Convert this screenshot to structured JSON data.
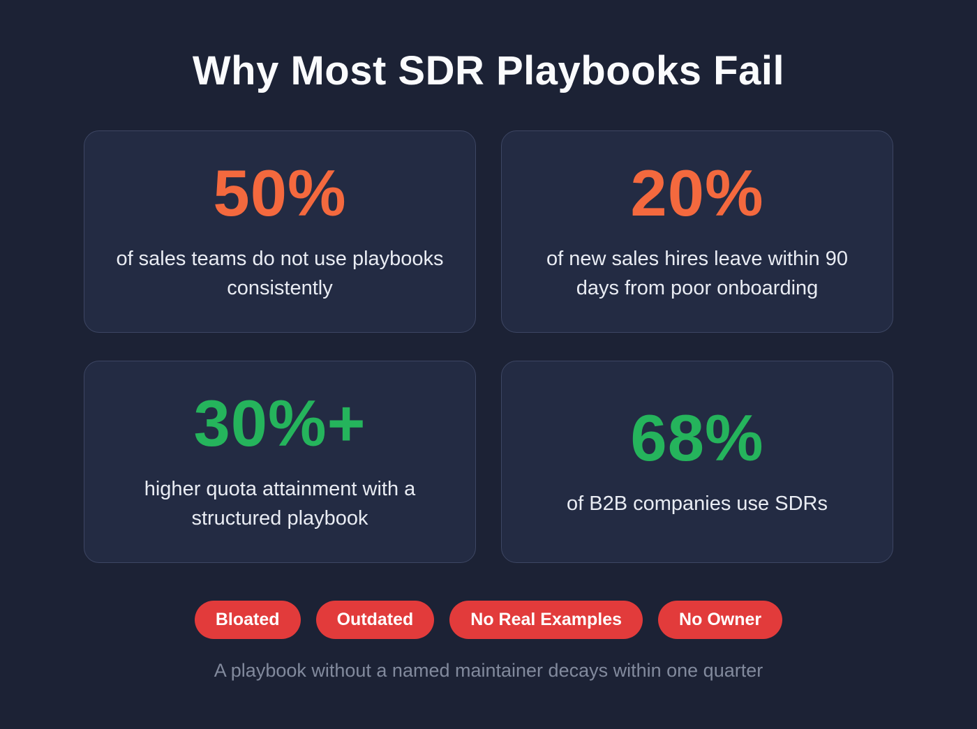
{
  "page": {
    "title": "Why Most SDR Playbooks Fail",
    "caption": "A playbook without a named maintainer decays within one quarter"
  },
  "colors": {
    "background": "#1c2235",
    "card_bg": "#232b43",
    "card_border": "#3d4663",
    "orange": "#f4693e",
    "green": "#25b45c",
    "red": "#e23b3b",
    "text": "#ecf0f6",
    "muted": "#828a9d"
  },
  "cards": [
    {
      "stat": "50%",
      "color": "orange",
      "description": "of sales teams do not use playbooks consistently"
    },
    {
      "stat": "20%",
      "color": "orange",
      "description": "of new sales hires leave within 90 days from poor onboarding"
    },
    {
      "stat": "30%+",
      "color": "green",
      "description": "higher quota attainment with a structured playbook"
    },
    {
      "stat": "68%",
      "color": "green",
      "description": "of B2B companies use SDRs"
    }
  ],
  "badges": [
    "Bloated",
    "Outdated",
    "No Real Examples",
    "No Owner"
  ]
}
